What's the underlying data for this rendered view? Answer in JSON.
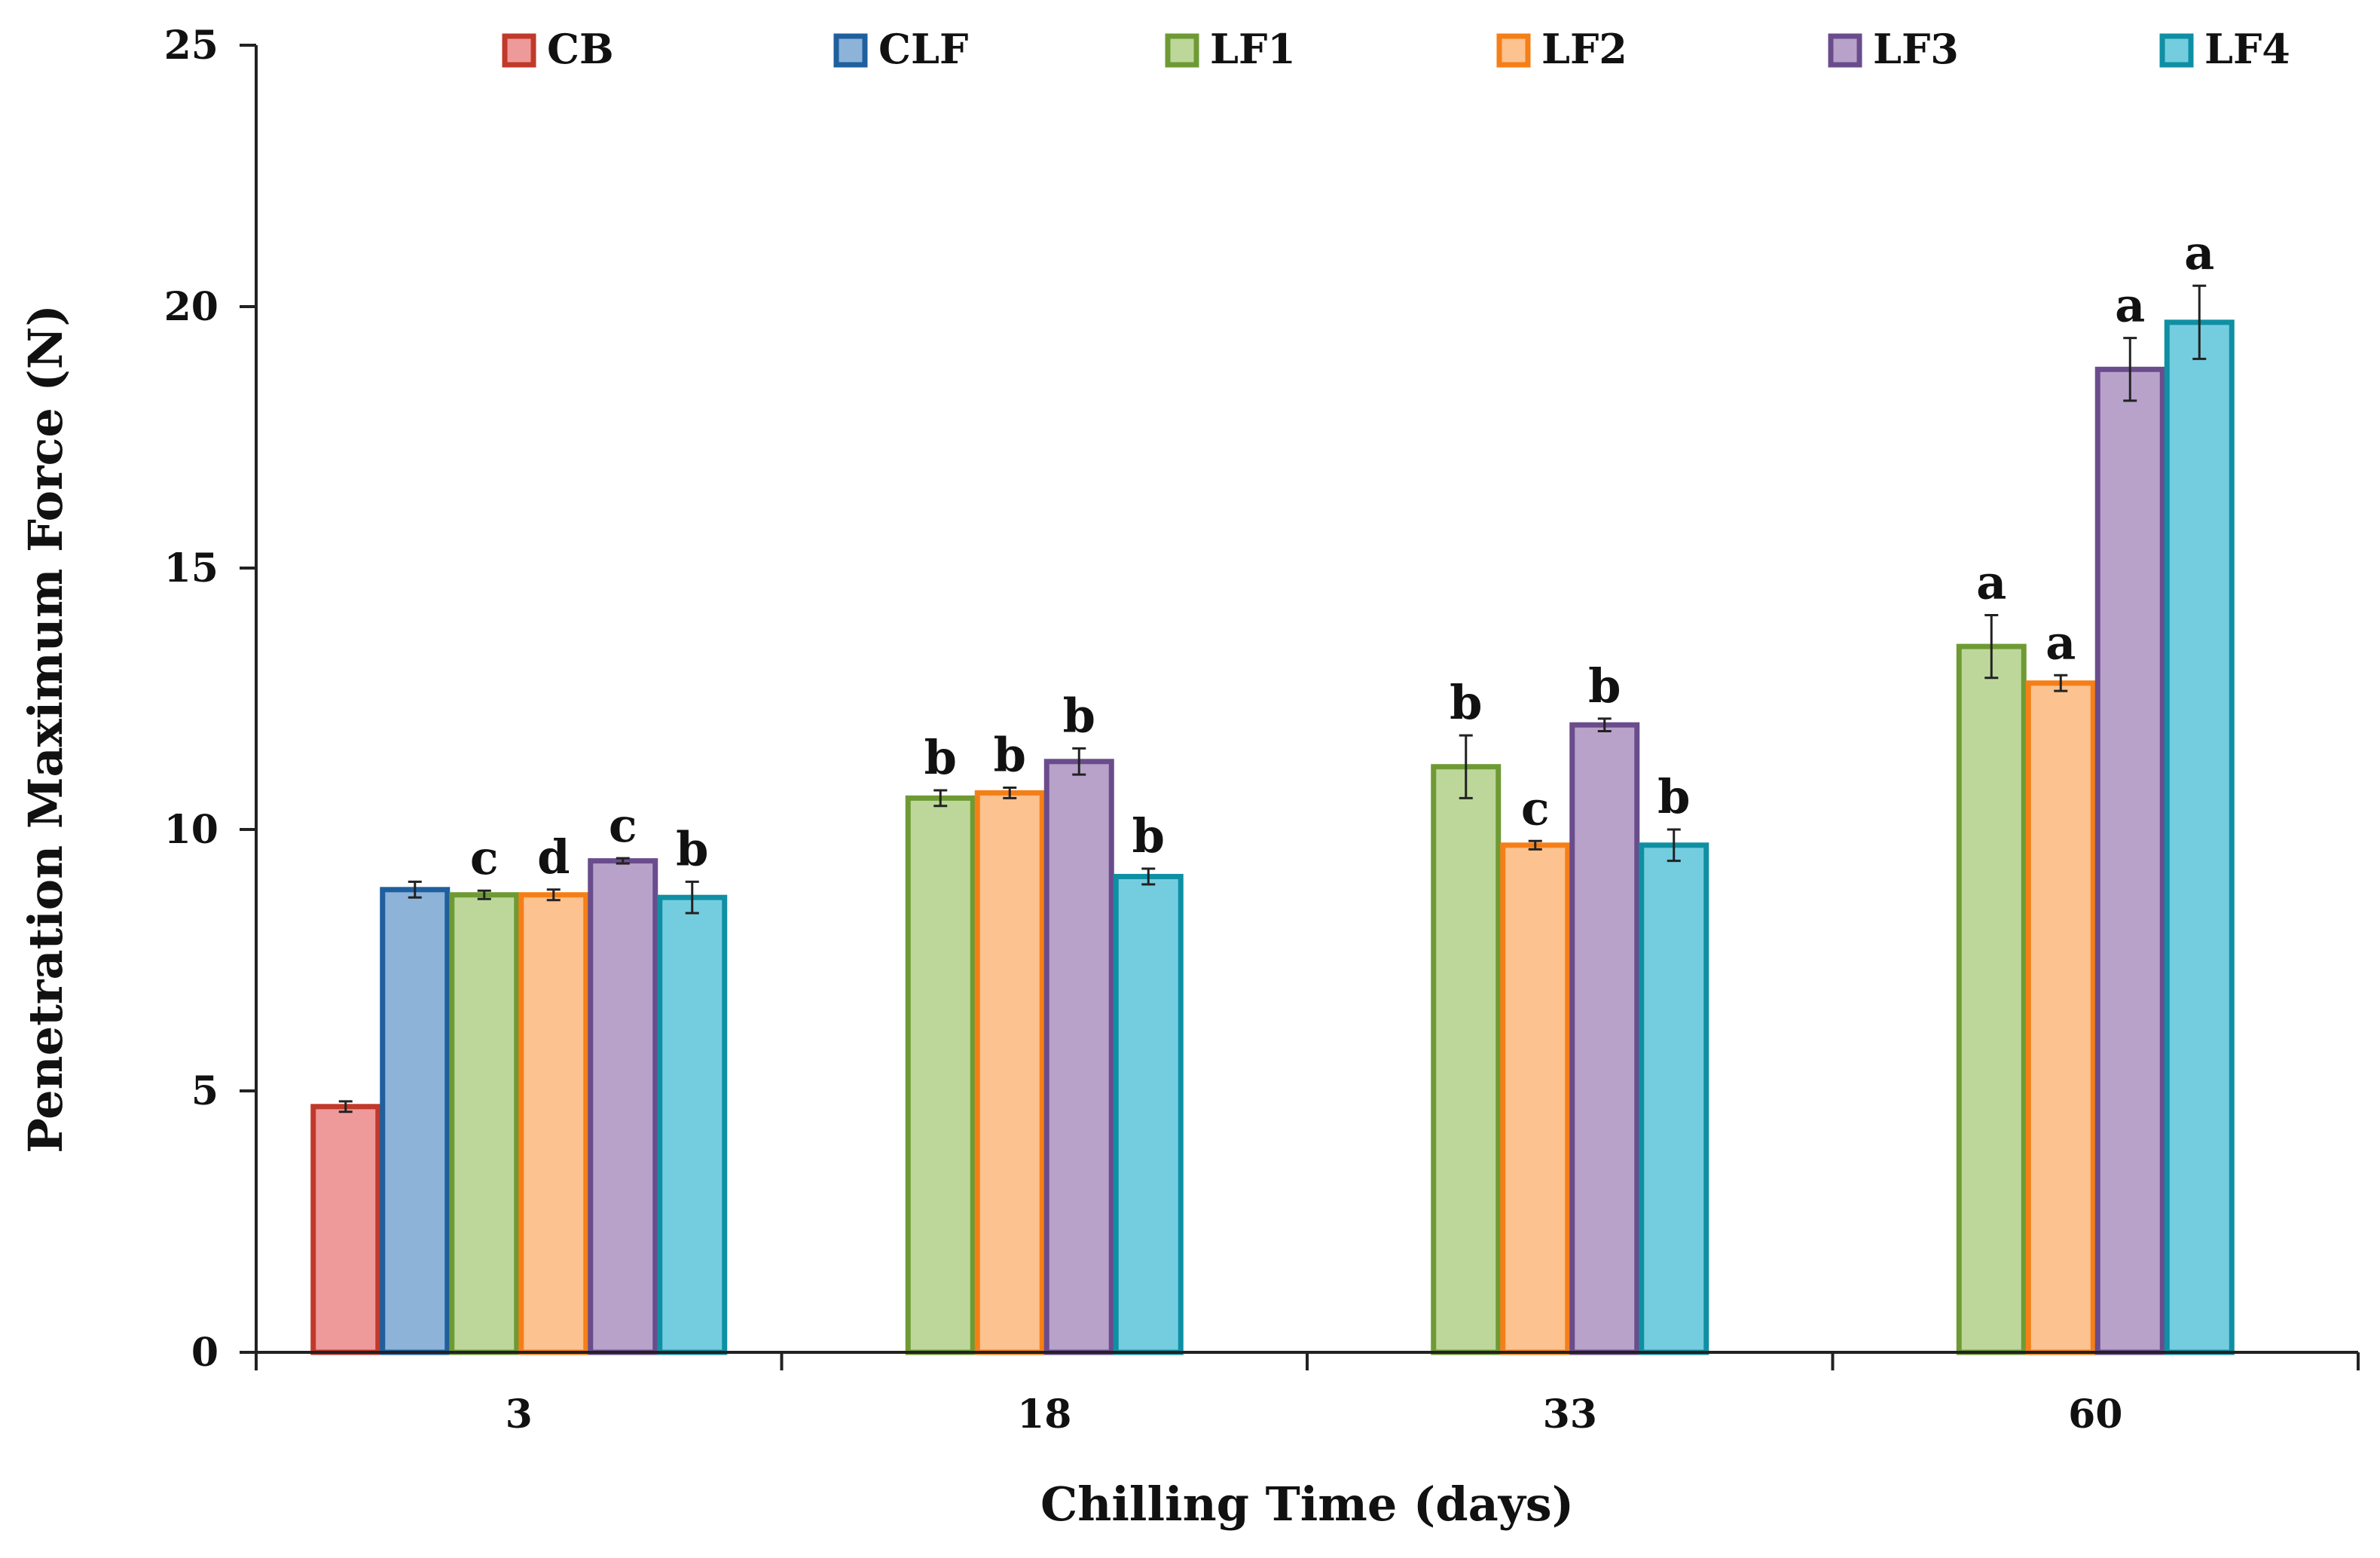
{
  "chart_data": {
    "type": "bar",
    "title": "",
    "xlabel": "Chilling Time (days)",
    "ylabel": "Penetration Maximum Force (N)",
    "ylim": [
      0,
      25
    ],
    "yticks": [
      0,
      5,
      10,
      15,
      20,
      25
    ],
    "grid": false,
    "legend_position": "top",
    "categories": [
      "3",
      "18",
      "33",
      "60"
    ],
    "series": [
      {
        "name": "CB",
        "fill": "#ef9a9a",
        "stroke": "#c0392b",
        "values": [
          4.7,
          null,
          null,
          null
        ],
        "errors": [
          0.1,
          null,
          null,
          null
        ],
        "labels": [
          "",
          "",
          "",
          ""
        ]
      },
      {
        "name": "CLF",
        "fill": "#8db3d9",
        "stroke": "#1f5f9e",
        "values": [
          8.85,
          null,
          null,
          null
        ],
        "errors": [
          0.15,
          null,
          null,
          null
        ],
        "labels": [
          "",
          "",
          "",
          ""
        ]
      },
      {
        "name": "LF1",
        "fill": "#bdd79b",
        "stroke": "#6e9a34",
        "values": [
          8.75,
          10.6,
          11.2,
          13.5
        ],
        "errors": [
          0.08,
          0.15,
          0.6,
          0.6
        ],
        "labels": [
          "c",
          "b",
          "b",
          "a"
        ]
      },
      {
        "name": "LF2",
        "fill": "#fcc28f",
        "stroke": "#f57f17",
        "values": [
          8.75,
          10.7,
          9.7,
          12.8
        ],
        "errors": [
          0.1,
          0.1,
          0.08,
          0.15
        ],
        "labels": [
          "d",
          "b",
          "c",
          "a"
        ]
      },
      {
        "name": "LF3",
        "fill": "#b8a2ca",
        "stroke": "#6a4c8c",
        "values": [
          9.4,
          11.3,
          12.0,
          18.8
        ],
        "errors": [
          0.05,
          0.25,
          0.12,
          0.6
        ],
        "labels": [
          "c",
          "b",
          "b",
          "a"
        ]
      },
      {
        "name": "LF4",
        "fill": "#74cddf",
        "stroke": "#0f8fa3",
        "values": [
          8.7,
          9.1,
          9.7,
          19.7
        ],
        "errors": [
          0.3,
          0.15,
          0.3,
          0.7
        ],
        "labels": [
          "b",
          "b",
          "b",
          "a"
        ]
      }
    ]
  }
}
